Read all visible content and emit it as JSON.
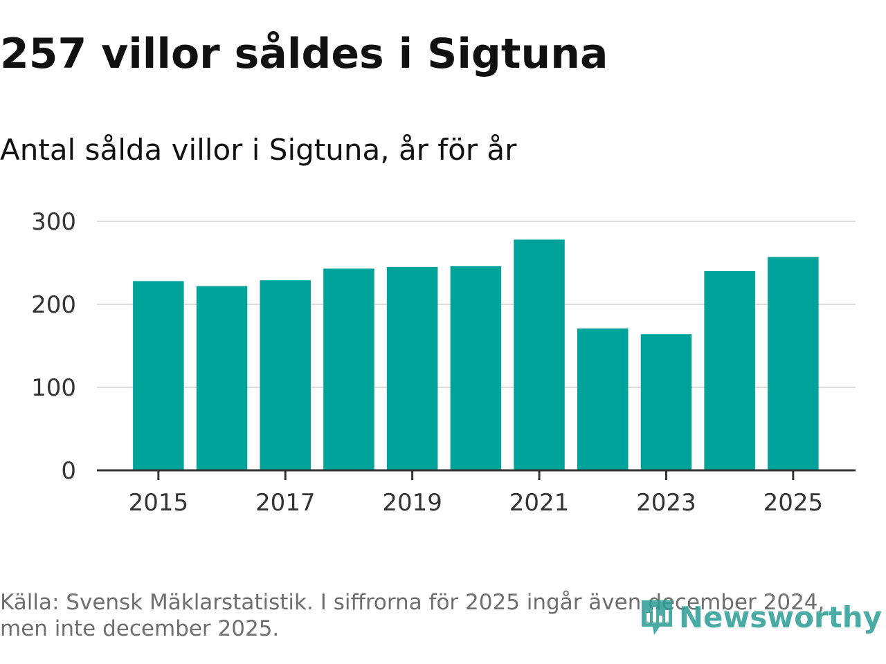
{
  "headline": "257 villor såldes i Sigtuna",
  "chart_data": {
    "type": "bar",
    "title": "257 villor såldes i Sigtuna",
    "subtitle": "Antal sålda villor i Sigtuna, år för år",
    "categories": [
      "2015",
      "2016",
      "2017",
      "2018",
      "2019",
      "2020",
      "2021",
      "2022",
      "2023",
      "2024",
      "2025"
    ],
    "values": [
      228,
      222,
      229,
      243,
      245,
      246,
      278,
      171,
      164,
      240,
      257
    ],
    "xtick_labels": [
      "2015",
      "2017",
      "2019",
      "2021",
      "2023",
      "2025"
    ],
    "yticks": [
      0,
      100,
      200,
      300
    ],
    "ylim": [
      0,
      300
    ],
    "xlabel": "",
    "ylabel": "",
    "grid": true,
    "bar_color": "#00a39a"
  },
  "source": {
    "line1": "Källa: Svensk Mäklarstatistik. I siffrorna för 2025 ingår även december 2024,",
    "line2": "men inte december 2025."
  },
  "brand": {
    "name": "Newsworthy",
    "icon": "newsworthy-logo-icon",
    "color": "#2a9d95"
  }
}
